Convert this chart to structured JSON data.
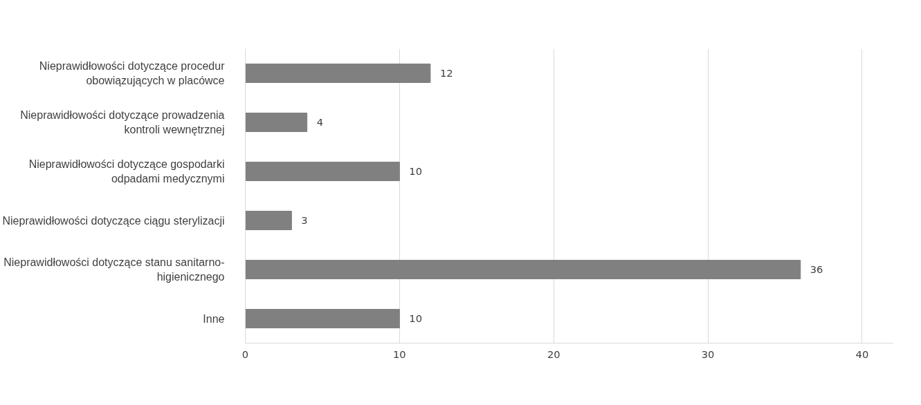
{
  "chart_data": {
    "type": "bar",
    "orientation": "horizontal",
    "categories": [
      "Nieprawidłowości dotyczące procedur obowiązujących w placówce",
      "Nieprawidłowości dotyczące prowadzenia kontroli wewnętrznej",
      "Nieprawidłowości dotyczące gospodarki odpadami medycznymi",
      "Nieprawidłowości dotyczące ciągu sterylizacji",
      "Nieprawidłowości dotyczące stanu sanitarno-higienicznego",
      "Inne"
    ],
    "values": [
      12,
      4,
      10,
      3,
      36,
      10
    ],
    "color": "#808080",
    "xlim": [
      0,
      42
    ],
    "xticks": [
      0,
      10,
      20,
      30,
      40
    ],
    "grid": "x",
    "data_labels": true
  }
}
